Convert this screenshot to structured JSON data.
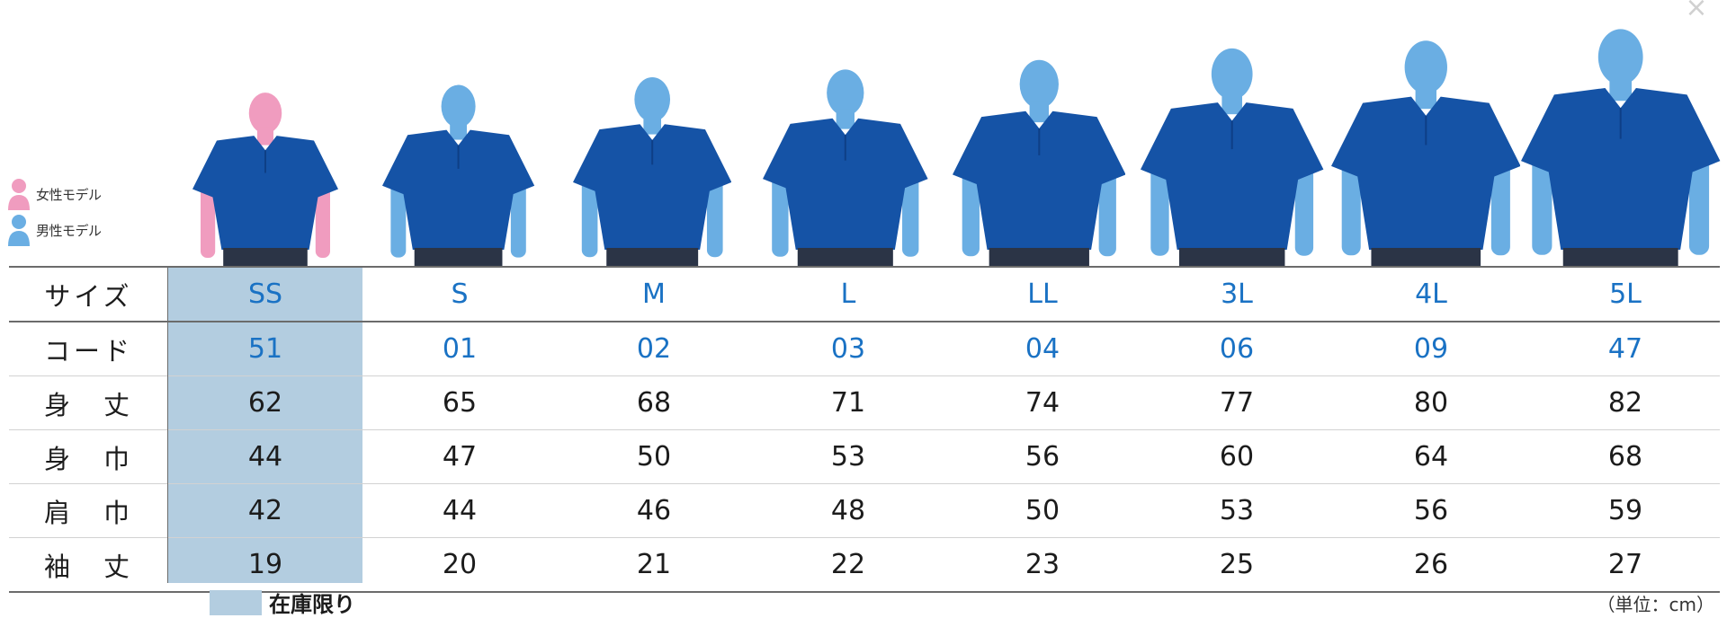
{
  "close_label": "×",
  "legend": {
    "female_label": "女性モデル",
    "male_label": "男性モデル",
    "female_color": "#f09cbf",
    "male_color": "#6aaee3"
  },
  "colors": {
    "shirt": "#1553a6",
    "pants": "#2b3446",
    "highlight": "#b3cde0",
    "accent_text": "#1a72c4"
  },
  "figures": [
    {
      "size": "SS",
      "model": "female"
    },
    {
      "size": "S",
      "model": "male"
    },
    {
      "size": "M",
      "model": "male"
    },
    {
      "size": "L",
      "model": "male"
    },
    {
      "size": "LL",
      "model": "male"
    },
    {
      "size": "3L",
      "model": "male"
    },
    {
      "size": "4L",
      "model": "male"
    },
    {
      "size": "5L",
      "model": "male"
    }
  ],
  "table": {
    "highlight_column": 0,
    "rows": [
      {
        "label": "サイズ",
        "accent": true,
        "values": [
          "SS",
          "S",
          "M",
          "L",
          "LL",
          "3L",
          "4L",
          "5L"
        ]
      },
      {
        "label": "コード",
        "accent": true,
        "values": [
          "51",
          "01",
          "02",
          "03",
          "04",
          "06",
          "09",
          "47"
        ]
      },
      {
        "label": "身　丈",
        "accent": false,
        "values": [
          "62",
          "65",
          "68",
          "71",
          "74",
          "77",
          "80",
          "82"
        ]
      },
      {
        "label": "身　巾",
        "accent": false,
        "values": [
          "44",
          "47",
          "50",
          "53",
          "56",
          "60",
          "64",
          "68"
        ]
      },
      {
        "label": "肩　巾",
        "accent": false,
        "values": [
          "42",
          "44",
          "46",
          "48",
          "50",
          "53",
          "56",
          "59"
        ]
      },
      {
        "label": "袖　丈",
        "accent": false,
        "values": [
          "19",
          "20",
          "21",
          "22",
          "23",
          "25",
          "26",
          "27"
        ]
      }
    ]
  },
  "footer": {
    "stock_label": "在庫限り",
    "unit_note": "（単位：cm）"
  }
}
